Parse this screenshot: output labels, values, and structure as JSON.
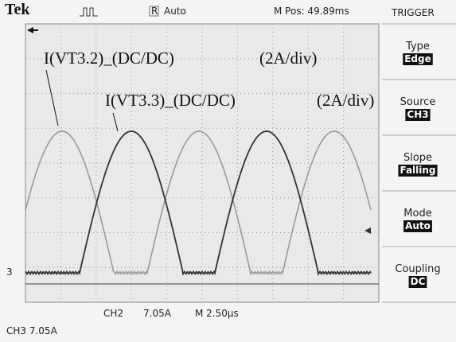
{
  "header": {
    "brand": "Tek",
    "ref_icon": "R",
    "trigger_state": "Auto",
    "position": "M Pos: 49.89ms",
    "menu_title": "TRIGGER"
  },
  "menu": [
    {
      "label": "Type",
      "value": "Edge"
    },
    {
      "label": "Source",
      "value": "CH3"
    },
    {
      "label": "Slope",
      "value": "Falling"
    },
    {
      "label": "Mode",
      "value": "Auto"
    },
    {
      "label": "Coupling",
      "value": "DC"
    }
  ],
  "annotations": [
    {
      "name": "I(VT3.2)_(DC/DC)",
      "scale": "(2A/div)"
    },
    {
      "name": "I(VT3.3)_(DC/DC)",
      "scale": "(2A/div)"
    }
  ],
  "markers": {
    "ground": "3"
  },
  "footer": {
    "ch2": "CH2",
    "ch2_scale": "7.05A",
    "timebase": "M 2.50µs",
    "ch3": "CH3 7.05A"
  }
}
